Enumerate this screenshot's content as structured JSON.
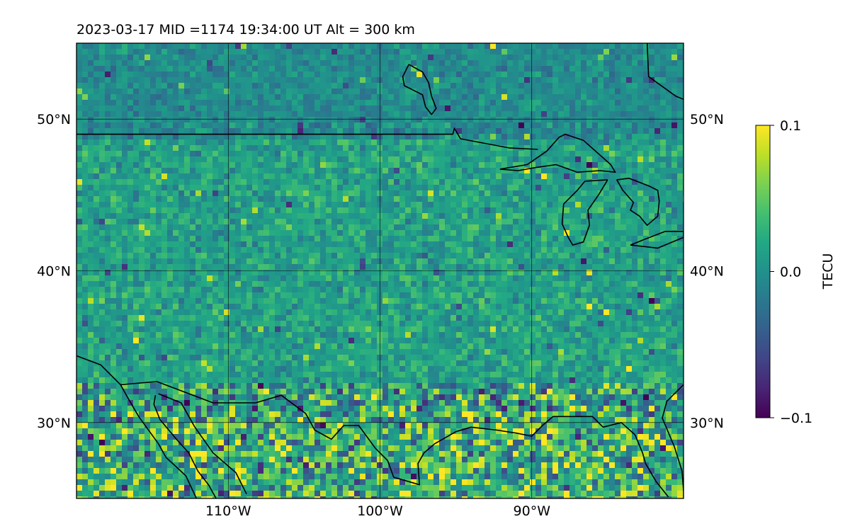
{
  "chart_data": {
    "type": "heatmap",
    "title": "2023-03-17  MID =1174    19:34:00  UT  Alt = 300 km",
    "xlabel": "",
    "ylabel": "",
    "x_range": [
      -120,
      -80
    ],
    "y_range": [
      25,
      55
    ],
    "x_ticks": [
      -110,
      -100,
      -90
    ],
    "x_tick_labels": [
      "110°W",
      "100°W",
      "90°W"
    ],
    "y_ticks": [
      30,
      40,
      50
    ],
    "y_tick_labels": [
      "30°N",
      "40°N",
      "50°N"
    ],
    "grid": true,
    "colormap": "viridis",
    "colorbar": {
      "label": "TECU",
      "min": -0.1,
      "max": 0.1,
      "ticks": [
        -0.1,
        0.0,
        0.1
      ],
      "tick_labels": [
        "−0.1",
        "0.0",
        "0.1"
      ]
    },
    "features": [
      {
        "name": "US-Canada border",
        "lonlat": [
          [
            -120,
            49
          ],
          [
            -95.2,
            49
          ],
          [
            -95.1,
            49.4
          ],
          [
            -94.7,
            48.7
          ],
          [
            -91.5,
            48.1
          ],
          [
            -89.6,
            48.0
          ]
        ]
      },
      {
        "name": "Lake Superior",
        "lonlat": [
          [
            -92.1,
            46.7
          ],
          [
            -90.3,
            47.0
          ],
          [
            -89.0,
            47.9
          ],
          [
            -88.2,
            48.8
          ],
          [
            -87.8,
            49.0
          ],
          [
            -86.6,
            48.6
          ],
          [
            -84.8,
            47.0
          ],
          [
            -84.5,
            46.5
          ],
          [
            -85.5,
            46.6
          ],
          [
            -87.0,
            46.5
          ],
          [
            -88.4,
            47.0
          ],
          [
            -89.8,
            46.8
          ],
          [
            -90.9,
            46.6
          ],
          [
            -92.1,
            46.7
          ]
        ]
      },
      {
        "name": "Lake Michigan",
        "lonlat": [
          [
            -85.0,
            46.0
          ],
          [
            -86.5,
            45.9
          ],
          [
            -87.0,
            45.3
          ],
          [
            -87.9,
            44.4
          ],
          [
            -88.0,
            43.1
          ],
          [
            -87.6,
            42.2
          ],
          [
            -87.3,
            41.7
          ],
          [
            -86.6,
            41.9
          ],
          [
            -86.2,
            43.0
          ],
          [
            -86.3,
            44.0
          ],
          [
            -85.6,
            45.0
          ],
          [
            -85.0,
            46.0
          ]
        ]
      },
      {
        "name": "Lake Huron",
        "lonlat": [
          [
            -84.4,
            46.0
          ],
          [
            -83.6,
            46.1
          ],
          [
            -82.3,
            45.6
          ],
          [
            -81.7,
            45.3
          ],
          [
            -81.6,
            44.6
          ],
          [
            -81.7,
            43.6
          ],
          [
            -82.4,
            43.0
          ],
          [
            -82.9,
            43.6
          ],
          [
            -83.5,
            44.0
          ],
          [
            -83.3,
            44.5
          ],
          [
            -84.0,
            45.3
          ],
          [
            -84.4,
            46.0
          ]
        ]
      },
      {
        "name": "Lake Erie",
        "lonlat": [
          [
            -83.5,
            41.7
          ],
          [
            -81.7,
            41.5
          ],
          [
            -80.0,
            42.2
          ],
          [
            -80.0,
            42.6
          ],
          [
            -81.2,
            42.6
          ],
          [
            -82.5,
            42.1
          ],
          [
            -83.5,
            41.7
          ]
        ]
      },
      {
        "name": "Hudson Bay coast",
        "lonlat": [
          [
            -82.4,
            55.1
          ],
          [
            -82.3,
            52.8
          ],
          [
            -80.5,
            51.5
          ],
          [
            -80.0,
            51.3
          ]
        ]
      },
      {
        "name": "Lake Winnipeg",
        "lonlat": [
          [
            -98.1,
            53.6
          ],
          [
            -97.2,
            53.1
          ],
          [
            -96.8,
            52.4
          ],
          [
            -96.6,
            51.5
          ],
          [
            -96.3,
            50.7
          ],
          [
            -96.6,
            50.3
          ],
          [
            -97.0,
            50.8
          ],
          [
            -97.2,
            51.6
          ],
          [
            -98.4,
            52.2
          ],
          [
            -98.5,
            52.8
          ],
          [
            -98.1,
            53.6
          ]
        ]
      },
      {
        "name": "US-Mexico border and Gulf coast",
        "lonlat": [
          [
            -120,
            34.4
          ],
          [
            -118.4,
            33.8
          ],
          [
            -117.1,
            32.5
          ],
          [
            -114.7,
            32.7
          ],
          [
            -111.0,
            31.3
          ],
          [
            -108.2,
            31.3
          ],
          [
            -106.5,
            31.8
          ],
          [
            -104.9,
            30.6
          ],
          [
            -104.3,
            29.5
          ],
          [
            -103.2,
            28.9
          ],
          [
            -102.4,
            29.8
          ],
          [
            -101.4,
            29.8
          ],
          [
            -100.3,
            28.3
          ],
          [
            -99.5,
            27.5
          ],
          [
            -99.1,
            26.4
          ],
          [
            -97.4,
            25.9
          ],
          [
            -97.5,
            27.3
          ],
          [
            -97.1,
            28.0
          ],
          [
            -96.4,
            28.6
          ],
          [
            -95.0,
            29.4
          ],
          [
            -94.0,
            29.7
          ],
          [
            -92.3,
            29.5
          ],
          [
            -91.0,
            29.3
          ],
          [
            -90.0,
            29.1
          ],
          [
            -89.3,
            29.8
          ],
          [
            -88.6,
            30.4
          ],
          [
            -87.4,
            30.4
          ],
          [
            -86.0,
            30.4
          ],
          [
            -85.3,
            29.7
          ],
          [
            -84.1,
            30.0
          ],
          [
            -83.2,
            29.2
          ],
          [
            -82.7,
            28.0
          ],
          [
            -82.5,
            27.3
          ],
          [
            -81.8,
            26.1
          ],
          [
            -81.0,
            25.1
          ]
        ]
      },
      {
        "name": "Atlantic coast of Florida",
        "lonlat": [
          [
            -80.0,
            32.5
          ],
          [
            -81.1,
            31.4
          ],
          [
            -81.4,
            30.3
          ],
          [
            -80.6,
            28.4
          ],
          [
            -80.1,
            26.8
          ],
          [
            -80.0,
            25.5
          ]
        ]
      },
      {
        "name": "Baja California west coast",
        "lonlat": [
          [
            -117.1,
            32.5
          ],
          [
            -116.6,
            31.6
          ],
          [
            -115.9,
            30.4
          ],
          [
            -114.6,
            28.6
          ],
          [
            -114.1,
            27.7
          ],
          [
            -112.8,
            26.5
          ],
          [
            -112.1,
            25.0
          ]
        ]
      },
      {
        "name": "Gulf of California east coast",
        "lonlat": [
          [
            -114.8,
            31.8
          ],
          [
            -114.9,
            31.2
          ],
          [
            -114.5,
            30.2
          ],
          [
            -113.5,
            29.0
          ],
          [
            -112.6,
            28.0
          ],
          [
            -112.0,
            26.8
          ],
          [
            -111.3,
            25.9
          ],
          [
            -110.8,
            25.0
          ]
        ]
      },
      {
        "name": "Sonora coast",
        "lonlat": [
          [
            -114.6,
            31.9
          ],
          [
            -113.1,
            31.3
          ],
          [
            -112.2,
            29.7
          ],
          [
            -111.0,
            28.0
          ],
          [
            -109.5,
            26.7
          ],
          [
            -108.8,
            25.3
          ]
        ]
      }
    ]
  }
}
